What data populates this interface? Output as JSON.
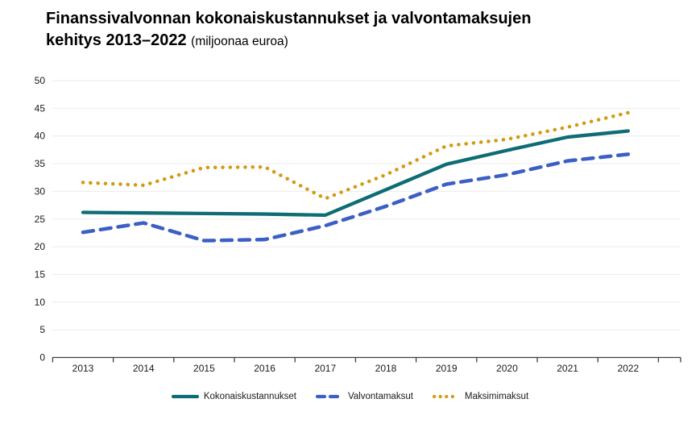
{
  "title": {
    "main": "Finanssivalvonnan kokonaiskustannukset ja valvontamaksujen kehitys 2013–2022",
    "unit": "(miljoonaa euroa)"
  },
  "colors": {
    "kokonaiskustannukset": "#0d6c74",
    "valvontamaksut": "#3c5fc5",
    "maksimimaksut": "#d39a12",
    "grid": "#ebebeb",
    "axis": "#404040",
    "label_text": "#1a1a1a"
  },
  "chart_data": {
    "type": "line",
    "categories": [
      "2013",
      "2014",
      "2015",
      "2016",
      "2017",
      "2018",
      "2019",
      "2020",
      "2021",
      "2022"
    ],
    "series": [
      {
        "name": "Kokonaiskustannukset",
        "style": "solid",
        "color_key": "kokonaiskustannukset",
        "values": [
          26.2,
          26.1,
          26.0,
          25.9,
          25.7,
          30.3,
          34.9,
          37.4,
          39.8,
          40.9
        ]
      },
      {
        "name": "Valvontamaksut",
        "style": "dashed",
        "color_key": "valvontamaksut",
        "values": [
          22.6,
          24.3,
          21.1,
          21.3,
          23.8,
          27.3,
          31.3,
          33.0,
          35.5,
          36.7
        ]
      },
      {
        "name": "Maksimimaksut",
        "style": "dotted",
        "color_key": "maksimimaksut",
        "values": [
          31.6,
          31.1,
          34.3,
          34.4,
          28.7,
          33.0,
          38.2,
          39.4,
          41.6,
          44.2
        ]
      }
    ],
    "ylim": [
      0,
      50
    ],
    "ytick_step": 5,
    "yticks": [
      0,
      5,
      10,
      15,
      20,
      25,
      30,
      35,
      40,
      45,
      50
    ],
    "grid": true,
    "legend_position": "bottom",
    "xlabel": "",
    "ylabel": ""
  }
}
